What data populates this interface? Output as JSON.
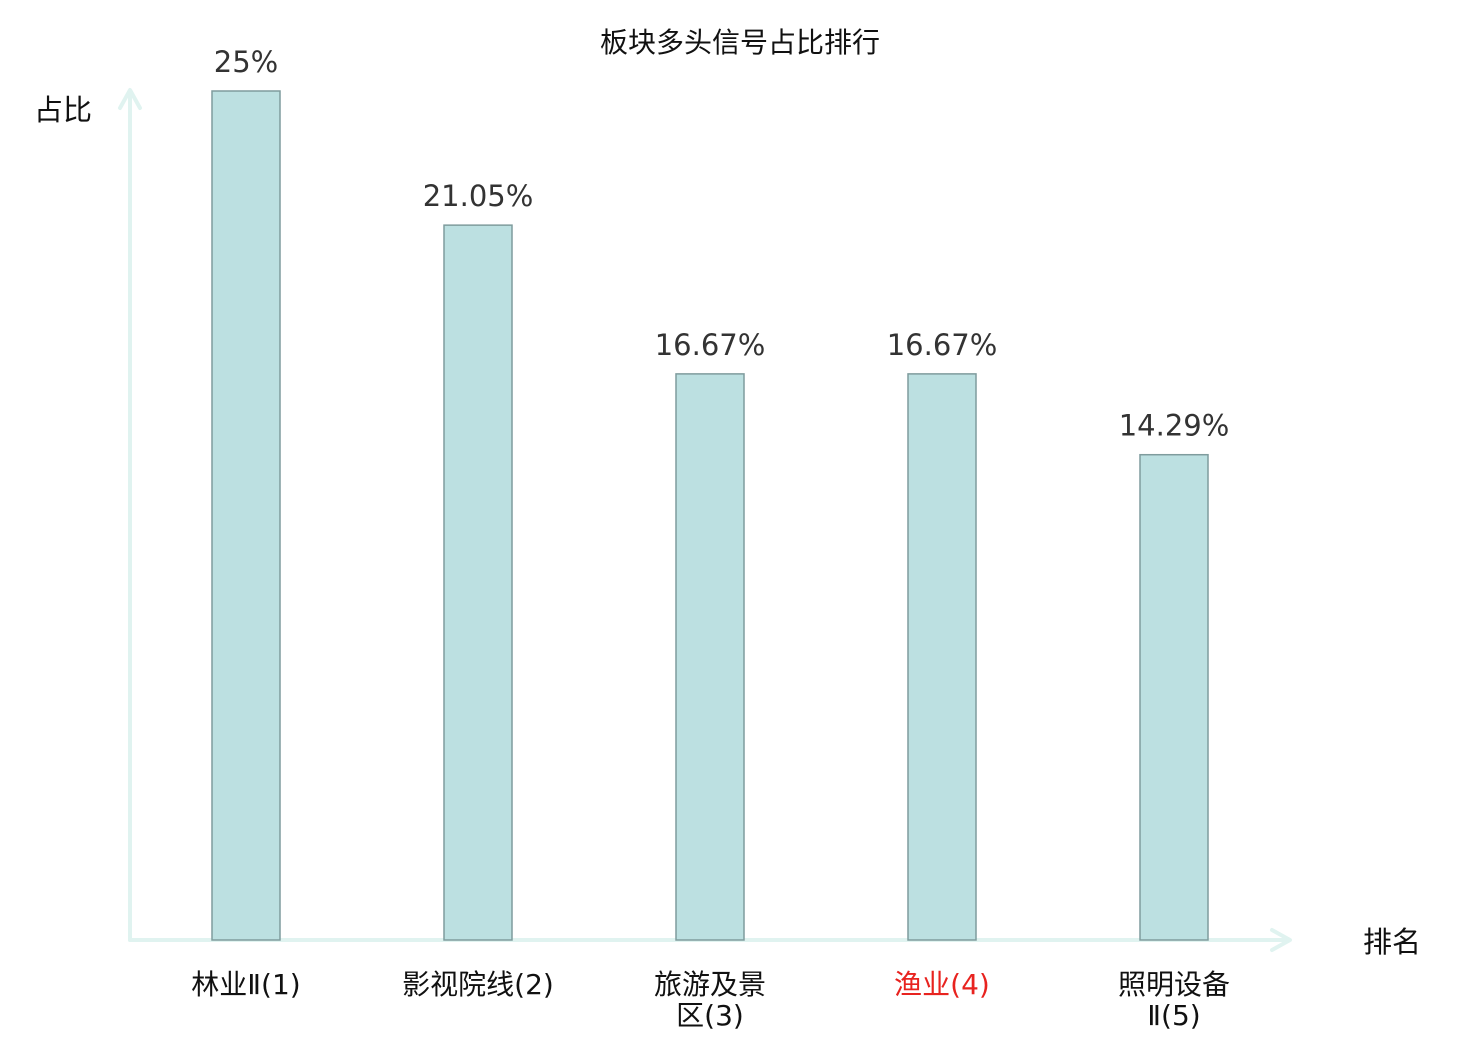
{
  "chart_data": {
    "type": "bar",
    "title": "板块多头信号占比排行",
    "ylabel": "占比",
    "xlabel": "排名",
    "categories": [
      {
        "name": "林业Ⅱ",
        "rank": "(1)",
        "highlight": false
      },
      {
        "name": "影视院线",
        "rank": "(2)",
        "highlight": false
      },
      {
        "name": "旅游及景区",
        "rank": "(3)",
        "highlight": false
      },
      {
        "name": "渔业",
        "rank": "(4)",
        "highlight": true
      },
      {
        "name": "照明设备Ⅱ",
        "rank": "(5)",
        "highlight": false
      }
    ],
    "values": [
      25,
      21.05,
      16.67,
      16.67,
      14.29
    ],
    "value_labels": [
      "25%",
      "21.05%",
      "16.67%",
      "16.67%",
      "14.29%"
    ],
    "ylim": [
      0,
      25
    ],
    "grid": false,
    "legend": "none",
    "colors": {
      "bar_fill": "#bce0e1",
      "bar_stroke": "#7f9c9d",
      "axis": "#e0f3f0",
      "highlight_label": "#e8231f"
    }
  }
}
